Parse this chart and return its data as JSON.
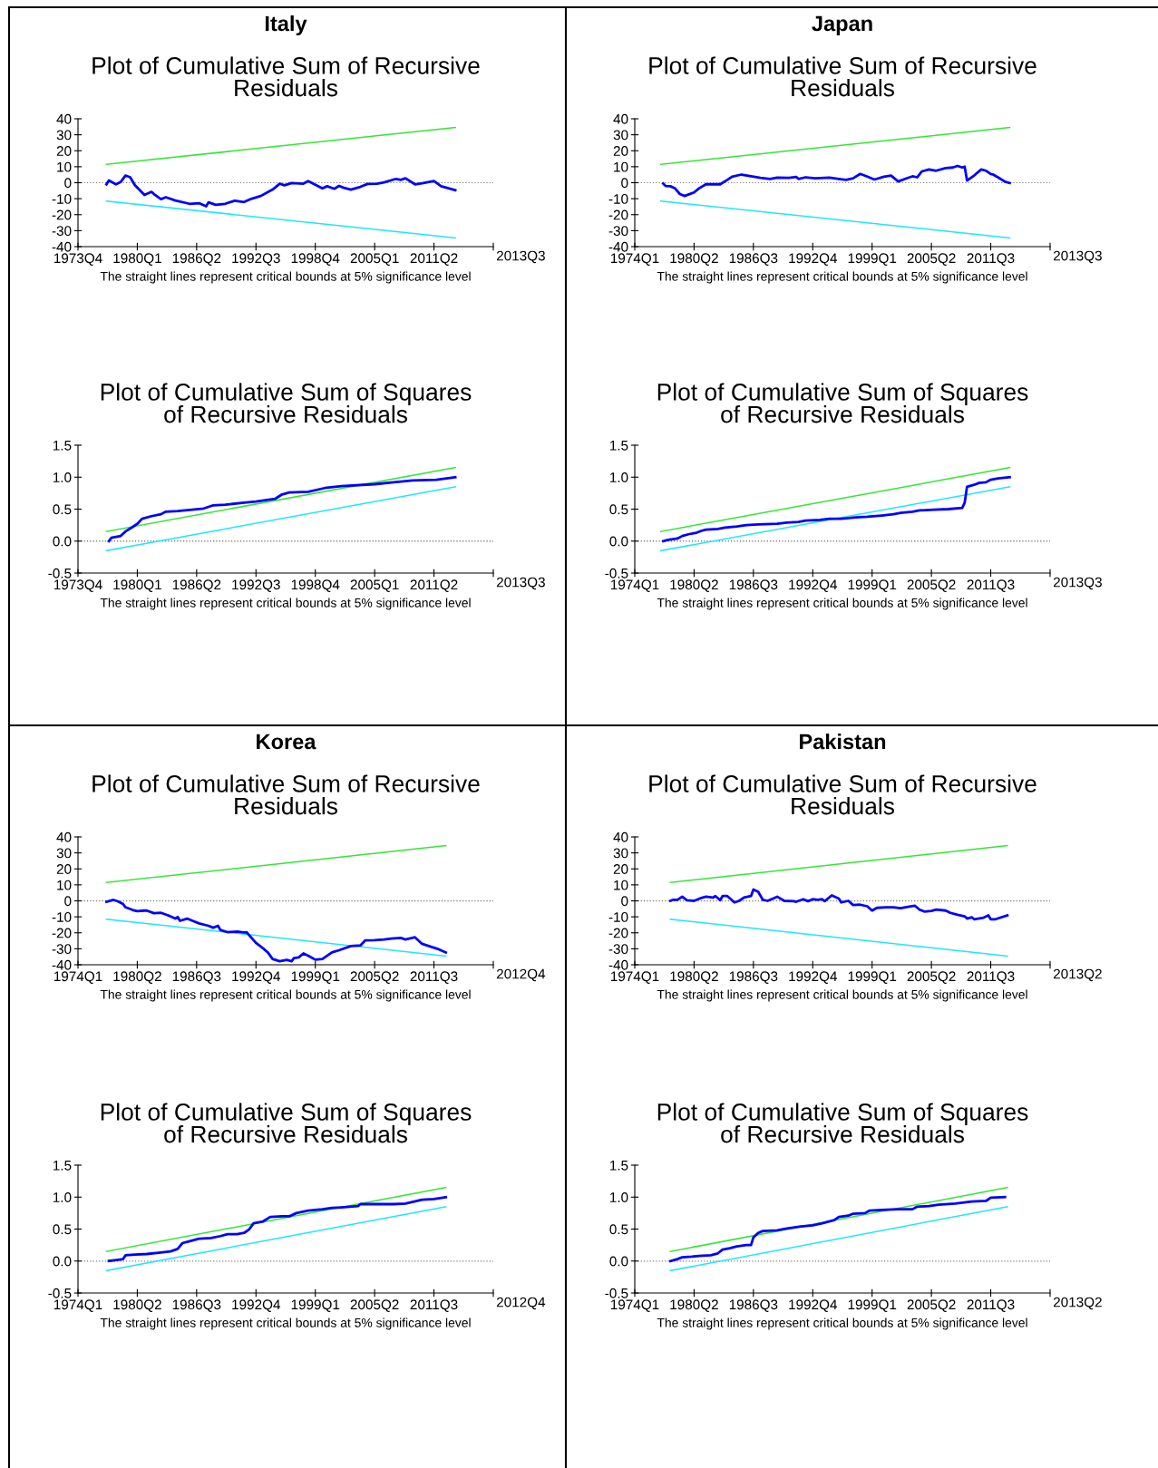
{
  "chart_data": [
    {
      "type": "line",
      "title": "Italy",
      "subtitle": "Plot of Cumulative Sum of Recursive\nResiduals",
      "annotations": [
        "2013Q3",
        "The straight lines represent critical bounds at 5% significance level"
      ],
      "xlim": [
        "1973-10",
        "2017-07"
      ],
      "xticks": [
        {
          "value": "1973-10",
          "label": "1973Q4"
        },
        {
          "value": "1980-01",
          "label": "1980Q1"
        },
        {
          "value": "1986-04",
          "label": "1986Q2"
        },
        {
          "value": "1992-07",
          "label": "1992Q3"
        },
        {
          "value": "1998-10",
          "label": "1998Q4"
        },
        {
          "value": "2005-01",
          "label": "2005Q1"
        },
        {
          "value": "2011-04",
          "label": "2011Q2"
        },
        {
          "value": "2017-07",
          "label": null
        }
      ],
      "ylim": [
        -40,
        40
      ],
      "yticks": [
        {
          "value": -40,
          "label": "-40"
        },
        {
          "value": -30,
          "label": "-30"
        },
        {
          "value": -20,
          "label": "-20"
        },
        {
          "value": -10,
          "label": "-10"
        },
        0,
        10,
        20,
        30,
        40
      ],
      "ref_lines": [
        {
          "axis": "y",
          "value": 0,
          "color": "#808080",
          "line_style": "dotted"
        }
      ],
      "series": [
        {
          "color": "#0000ff",
          "x": [
            "1976-10",
            "1977-01",
            "1977-10",
            "1978-04",
            "1978-10",
            "1979-04",
            "1979-10",
            "1980-10",
            "1981-07",
            "1981-10",
            "1982-07",
            "1983-01",
            "1984-01",
            "1985-07",
            "1986-07",
            "1987-04",
            "1987-07",
            "1988-04",
            "1989-04",
            "1990-04",
            "1991-04",
            "1992-01",
            "1993-01",
            "1994-04",
            "1995-01",
            "1995-07",
            "1996-04",
            "1997-07",
            "1998-01",
            "1999-07",
            "2000-01",
            "2000-10",
            "2001-04",
            "2001-10",
            "2002-07",
            "2003-07",
            "2004-04",
            "2005-04",
            "2006-01",
            "2007-04",
            "2007-10",
            "2008-04",
            "2009-04",
            "2010-01",
            "2011-04",
            "2012-01",
            "2013-07"
          ],
          "values": [
            -1,
            1.4,
            -1,
            0.4,
            4.5,
            3.4,
            -1.6,
            -7.7,
            -5.7,
            -7.1,
            -10.3,
            -9.1,
            -11.1,
            -13.2,
            -12.8,
            -14.8,
            -12.3,
            -13.8,
            -13.2,
            -11.3,
            -12.1,
            -10.1,
            -8.3,
            -4.3,
            -0.6,
            -1.6,
            -0.2,
            -0.6,
            1.0,
            -3.6,
            -2.2,
            -3.8,
            -2.0,
            -3.2,
            -4.3,
            -2.6,
            -0.8,
            -0.6,
            0.2,
            2.4,
            1.8,
            2.8,
            -1.0,
            -0.4,
            1.0,
            -2.2,
            -4.7
          ]
        },
        {
          "color": "#33e633",
          "x": [
            "1976-10",
            "2013-07"
          ],
          "values": [
            11.5,
            34.5
          ]
        },
        {
          "color": "#1ee6ff",
          "x": [
            "1976-10",
            "2013-07"
          ],
          "values": [
            -11.5,
            -34.5
          ]
        }
      ]
    },
    {
      "type": "line",
      "title": "Japan",
      "subtitle": "Plot of Cumulative Sum of Recursive\nResiduals",
      "annotations": [
        "2013Q3",
        "The straight lines represent critical bounds at 5% significance level"
      ],
      "xlim": [
        "1974-01",
        "2017-10"
      ],
      "xticks": [
        {
          "value": "1974-01",
          "label": "1974Q1"
        },
        {
          "value": "1980-04",
          "label": "1980Q2"
        },
        {
          "value": "1986-07",
          "label": "1986Q3"
        },
        {
          "value": "1992-10",
          "label": "1992Q4"
        },
        {
          "value": "1999-01",
          "label": "1999Q1"
        },
        {
          "value": "2005-04",
          "label": "2005Q2"
        },
        {
          "value": "2011-07",
          "label": "2011Q3"
        },
        {
          "value": "2017-10",
          "label": null
        }
      ],
      "ylim": [
        -40,
        40
      ],
      "yticks": [
        {
          "value": -40,
          "label": "-40"
        },
        {
          "value": -30,
          "label": "-30"
        },
        {
          "value": -20,
          "label": "-20"
        },
        {
          "value": -10,
          "label": "-10"
        },
        0,
        10,
        20,
        30,
        40
      ],
      "ref_lines": [
        {
          "axis": "y",
          "value": 0,
          "color": "#808080",
          "line_style": "dotted"
        }
      ],
      "series": [
        {
          "color": "#0000ff",
          "x": [
            "1977-01",
            "1977-04",
            "1977-10",
            "1978-04",
            "1978-10",
            "1979-04",
            "1980-04",
            "1980-10",
            "1981-07",
            "1982-07",
            "1983-01",
            "1983-10",
            "1984-04",
            "1985-04",
            "1986-04",
            "1987-04",
            "1988-04",
            "1989-01",
            "1990-04",
            "1991-01",
            "1991-04",
            "1992-01",
            "1993-01",
            "1994-07",
            "1995-07",
            "1996-04",
            "1997-01",
            "1997-10",
            "1998-07",
            "1999-04",
            "2000-04",
            "2001-01",
            "2001-10",
            "2002-10",
            "2003-04",
            "2003-10",
            "2004-04",
            "2005-01",
            "2005-10",
            "2006-10",
            "2007-07",
            "2008-01",
            "2008-07",
            "2008-10",
            "2009-01",
            "2009-10",
            "2010-07",
            "2011-01",
            "2011-07",
            "2011-10",
            "2012-04",
            "2013-01",
            "2013-07"
          ],
          "values": [
            -0.6,
            -2,
            -2.2,
            -3.6,
            -7.1,
            -8.3,
            -6.1,
            -3.6,
            -1,
            -1,
            -1,
            1.8,
            3.8,
            5.1,
            4,
            3,
            2.4,
            3.2,
            3.0,
            3.6,
            2.4,
            3.4,
            2.8,
            3.2,
            2.4,
            1.8,
            2.8,
            5.5,
            3.8,
            2.0,
            3.8,
            4.5,
            0.8,
            3.0,
            4.0,
            3.4,
            7.1,
            8.3,
            7.5,
            9.1,
            9.5,
            10.5,
            9.5,
            10.1,
            1.4,
            4.5,
            8.3,
            7.5,
            5.5,
            5.1,
            3.4,
            0.6,
            -0.2
          ]
        },
        {
          "color": "#33e633",
          "x": [
            "1976-10",
            "2013-07"
          ],
          "values": [
            11.5,
            34.5
          ]
        },
        {
          "color": "#1ee6ff",
          "x": [
            "1976-10",
            "2013-07"
          ],
          "values": [
            -11.5,
            -34.5
          ]
        }
      ]
    },
    {
      "type": "line",
      "subtitle": "Plot of Cumulative Sum of Squares\nof Recursive Residuals",
      "annotations": [
        "2013Q3",
        "The straight lines represent critical bounds at 5% significance level"
      ],
      "xlim": [
        "1973-10",
        "2017-07"
      ],
      "xticks": [
        {
          "value": "1973-10",
          "label": "1973Q4"
        },
        {
          "value": "1980-01",
          "label": "1980Q1"
        },
        {
          "value": "1986-04",
          "label": "1986Q2"
        },
        {
          "value": "1992-07",
          "label": "1992Q3"
        },
        {
          "value": "1998-10",
          "label": "1998Q4"
        },
        {
          "value": "2005-01",
          "label": "2005Q1"
        },
        {
          "value": "2011-04",
          "label": "2011Q2"
        },
        {
          "value": "2017-07",
          "label": null
        }
      ],
      "ylim": [
        -0.5,
        1.5
      ],
      "yticks": [
        {
          "value": -0.5,
          "label": "-0.5"
        },
        {
          "value": 0,
          "label": "0.0"
        },
        0.5,
        {
          "value": 1,
          "label": "1.0"
        },
        1.5
      ],
      "ref_lines": [
        {
          "axis": "y",
          "value": 0,
          "color": "#808080",
          "line_style": "dotted"
        }
      ],
      "series": [
        {
          "color": "#0000ff",
          "x": [
            "1977-01",
            "1977-04",
            "1978-04",
            "1978-10",
            "1979-07",
            "1980-01",
            "1980-07",
            "1981-07",
            "1982-07",
            "1983-01",
            "1984-04",
            "1985-10",
            "1987-01",
            "1988-01",
            "1989-04",
            "1991-04",
            "1992-07",
            "1994-01",
            "1994-07",
            "1995-04",
            "1996-01",
            "1998-01",
            "1999-10",
            "2001-07",
            "2005-01",
            "2007-01",
            "2009-01",
            "2011-07",
            "2013-07"
          ],
          "values": [
            0,
            0.05,
            0.08,
            0.15,
            0.22,
            0.27,
            0.35,
            0.39,
            0.42,
            0.46,
            0.47,
            0.49,
            0.51,
            0.56,
            0.57,
            0.6,
            0.62,
            0.65,
            0.66,
            0.73,
            0.76,
            0.77,
            0.83,
            0.86,
            0.89,
            0.92,
            0.95,
            0.96,
            1.0
          ]
        },
        {
          "color": "#33e633",
          "x": [
            "1976-10",
            "2013-07"
          ],
          "values": [
            0.15,
            1.15
          ]
        },
        {
          "color": "#1ee6ff",
          "x": [
            "1976-10",
            "2013-07"
          ],
          "values": [
            -0.15,
            0.85
          ]
        }
      ]
    },
    {
      "type": "line",
      "subtitle": "Plot of Cumulative Sum of Squares\nof Recursive Residuals",
      "annotations": [
        "2013Q3",
        "The straight lines represent critical bounds at 5% significance level"
      ],
      "xlim": [
        "1974-01",
        "2017-10"
      ],
      "xticks": [
        {
          "value": "1974-01",
          "label": "1974Q1"
        },
        {
          "value": "1980-04",
          "label": "1980Q2"
        },
        {
          "value": "1986-07",
          "label": "1986Q3"
        },
        {
          "value": "1992-10",
          "label": "1992Q4"
        },
        {
          "value": "1999-01",
          "label": "1999Q1"
        },
        {
          "value": "2005-04",
          "label": "2005Q2"
        },
        {
          "value": "2011-07",
          "label": "2011Q3"
        },
        {
          "value": "2017-10",
          "label": null
        }
      ],
      "ylim": [
        -0.5,
        1.5
      ],
      "yticks": [
        {
          "value": -0.5,
          "label": "-0.5"
        },
        {
          "value": 0,
          "label": "0.0"
        },
        0.5,
        {
          "value": 1,
          "label": "1.0"
        },
        1.5
      ],
      "ref_lines": [
        {
          "axis": "y",
          "value": 0,
          "color": "#808080",
          "line_style": "dotted"
        }
      ],
      "series": [
        {
          "color": "#0000ff",
          "x": [
            "1977-01",
            "1977-07",
            "1978-07",
            "1979-01",
            "1979-10",
            "1980-07",
            "1981-01",
            "1981-07",
            "1982-10",
            "1983-07",
            "1984-10",
            "1985-10",
            "1987-01",
            "1989-01",
            "1990-01",
            "1991-04",
            "1992-01",
            "1993-07",
            "1994-07",
            "1995-10",
            "1997-04",
            "1998-07",
            "2000-01",
            "2001-04",
            "2002-01",
            "2003-04",
            "2004-01",
            "2005-07",
            "2007-01",
            "2008-07",
            "2008-10",
            "2009-01",
            "2009-10",
            "2010-04",
            "2011-01",
            "2011-07",
            "2012-04",
            "2013-07"
          ],
          "values": [
            0,
            0.02,
            0.04,
            0.08,
            0.11,
            0.13,
            0.16,
            0.18,
            0.19,
            0.21,
            0.23,
            0.25,
            0.26,
            0.27,
            0.29,
            0.3,
            0.32,
            0.33,
            0.35,
            0.35,
            0.37,
            0.38,
            0.4,
            0.42,
            0.44,
            0.46,
            0.48,
            0.49,
            0.5,
            0.52,
            0.6,
            0.85,
            0.88,
            0.91,
            0.92,
            0.96,
            0.98,
            1.0
          ]
        },
        {
          "color": "#33e633",
          "x": [
            "1976-10",
            "2013-07"
          ],
          "values": [
            0.15,
            1.15
          ]
        },
        {
          "color": "#1ee6ff",
          "x": [
            "1976-10",
            "2013-07"
          ],
          "values": [
            -0.15,
            0.85
          ]
        }
      ]
    },
    {
      "type": "line",
      "title": "Korea",
      "subtitle": "Plot of Cumulative Sum of Recursive\nResiduals",
      "annotations": [
        "2012Q4",
        "The straight lines represent critical bounds at 5% significance level"
      ],
      "xlim": [
        "1974-01",
        "2017-10"
      ],
      "xticks": [
        {
          "value": "1974-01",
          "label": "1974Q1"
        },
        {
          "value": "1980-04",
          "label": "1980Q2"
        },
        {
          "value": "1986-07",
          "label": "1986Q3"
        },
        {
          "value": "1992-10",
          "label": "1992Q4"
        },
        {
          "value": "1999-01",
          "label": "1999Q1"
        },
        {
          "value": "2005-04",
          "label": "2005Q2"
        },
        {
          "value": "2011-07",
          "label": "2011Q3"
        },
        {
          "value": "2017-10",
          "label": null
        }
      ],
      "ylim": [
        -40,
        40
      ],
      "yticks": [
        {
          "value": -40,
          "label": "-40"
        },
        {
          "value": -30,
          "label": "-30"
        },
        {
          "value": -20,
          "label": "-20"
        },
        {
          "value": -10,
          "label": "-10"
        },
        0,
        10,
        20,
        30,
        40
      ],
      "ref_lines": [
        {
          "axis": "y",
          "value": 0,
          "color": "#808080",
          "line_style": "dotted"
        }
      ],
      "series": [
        {
          "color": "#0000ff",
          "x": [
            "1977-01",
            "1977-10",
            "1978-04",
            "1978-10",
            "1979-01",
            "1979-10",
            "1980-04",
            "1981-01",
            "1981-04",
            "1982-01",
            "1982-10",
            "1983-07",
            "1984-04",
            "1984-07",
            "1984-10",
            "1985-07",
            "1986-01",
            "1986-10",
            "1987-10",
            "1988-04",
            "1988-10",
            "1989-01",
            "1989-10",
            "1990-10",
            "1991-07",
            "1991-10",
            "1992-10",
            "1993-07",
            "1994-01",
            "1994-07",
            "1995-04",
            "1996-01",
            "1996-07",
            "1996-10",
            "1997-04",
            "1997-10",
            "1998-04",
            "1999-01",
            "1999-10",
            "2000-10",
            "2001-07",
            "2002-10",
            "2003-10",
            "2004-04",
            "2005-04",
            "2006-04",
            "2007-01",
            "2008-01",
            "2008-07",
            "2009-07",
            "2010-04",
            "2011-04",
            "2012-01",
            "2012-10"
          ],
          "values": [
            -0.6,
            0.6,
            -0.4,
            -2,
            -4,
            -5.7,
            -6.5,
            -6.1,
            -6.1,
            -7.7,
            -7.5,
            -9.1,
            -11.1,
            -10.1,
            -12.5,
            -11.1,
            -12.3,
            -14.1,
            -15.6,
            -16.8,
            -15.6,
            -18.2,
            -19.6,
            -19.2,
            -19.8,
            -19.6,
            -26.3,
            -29.7,
            -32.3,
            -36.4,
            -37.8,
            -37,
            -37.8,
            -35.8,
            -35.4,
            -32.9,
            -34.3,
            -36.8,
            -36.4,
            -32.3,
            -30.9,
            -28.3,
            -27.9,
            -24.8,
            -24.6,
            -24.2,
            -23.6,
            -23.2,
            -24.2,
            -22.8,
            -26.9,
            -28.9,
            -30.3,
            -32.3
          ]
        },
        {
          "color": "#33e633",
          "x": [
            "1977-01",
            "2012-10"
          ],
          "values": [
            11.5,
            34.5
          ]
        },
        {
          "color": "#1ee6ff",
          "x": [
            "1977-01",
            "2012-10"
          ],
          "values": [
            -11.5,
            -34.5
          ]
        }
      ]
    },
    {
      "type": "line",
      "title": "Pakistan",
      "subtitle": "Plot of Cumulative Sum of Recursive\nResiduals",
      "annotations": [
        "2013Q2",
        "The straight lines represent critical bounds at 5% significance level"
      ],
      "xlim": [
        "1974-01",
        "2017-10"
      ],
      "xticks": [
        {
          "value": "1974-01",
          "label": "1974Q1"
        },
        {
          "value": "1980-04",
          "label": "1980Q2"
        },
        {
          "value": "1986-07",
          "label": "1986Q3"
        },
        {
          "value": "1992-10",
          "label": "1992Q4"
        },
        {
          "value": "1999-01",
          "label": "1999Q1"
        },
        {
          "value": "2005-04",
          "label": "2005Q2"
        },
        {
          "value": "2011-07",
          "label": "2011Q3"
        },
        {
          "value": "2017-10",
          "label": null
        }
      ],
      "ylim": [
        -40,
        40
      ],
      "yticks": [
        {
          "value": -40,
          "label": "-40"
        },
        {
          "value": -30,
          "label": "-30"
        },
        {
          "value": -20,
          "label": "-20"
        },
        {
          "value": -10,
          "label": "-10"
        },
        0,
        10,
        20,
        30,
        40
      ],
      "ref_lines": [
        {
          "axis": "y",
          "value": 0,
          "color": "#808080",
          "line_style": "dotted"
        }
      ],
      "series": [
        {
          "color": "#0000ff",
          "x": [
            "1977-10",
            "1978-01",
            "1978-07",
            "1979-01",
            "1979-07",
            "1980-04",
            "1981-01",
            "1981-07",
            "1982-04",
            "1982-07",
            "1983-01",
            "1983-04",
            "1983-10",
            "1984-07",
            "1985-01",
            "1985-07",
            "1986-04",
            "1986-07",
            "1987-01",
            "1987-07",
            "1988-01",
            "1989-01",
            "1989-10",
            "1990-10",
            "1991-01",
            "1991-10",
            "1992-04",
            "1992-10",
            "1993-04",
            "1993-10",
            "1994-01",
            "1994-10",
            "1995-07",
            "1995-10",
            "1996-07",
            "1997-01",
            "1997-10",
            "1998-07",
            "1999-01",
            "1999-07",
            "2000-07",
            "2001-04",
            "2002-01",
            "2002-07",
            "2003-07",
            "2004-01",
            "2004-07",
            "2005-04",
            "2005-10",
            "2006-10",
            "2007-04",
            "2008-01",
            "2008-10",
            "2009-01",
            "2009-07",
            "2009-10",
            "2010-10",
            "2011-04",
            "2011-07",
            "2012-01",
            "2013-04"
          ],
          "values": [
            0,
            0.6,
            0.6,
            2.6,
            0.4,
            0,
            1.8,
            2.6,
            2,
            3,
            0.4,
            3,
            3,
            -1,
            0,
            2,
            3,
            7.1,
            5.7,
            0.6,
            0,
            2.6,
            0,
            -0.2,
            -0.6,
            1.0,
            -0.2,
            1,
            0.6,
            1,
            -0.2,
            3.4,
            1.4,
            -1,
            0,
            -2.6,
            -2.4,
            -3.4,
            -6.1,
            -4.4,
            -4,
            -4,
            -4.6,
            -4,
            -3,
            -5.5,
            -6.7,
            -6.3,
            -5.5,
            -6.1,
            -7.5,
            -8.7,
            -9.7,
            -11.1,
            -10.3,
            -11.5,
            -10.5,
            -9.1,
            -11.5,
            -11.5,
            -9.1
          ]
        },
        {
          "color": "#33e633",
          "x": [
            "1977-10",
            "2013-04"
          ],
          "values": [
            11.5,
            34.5
          ]
        },
        {
          "color": "#1ee6ff",
          "x": [
            "1977-10",
            "2013-04"
          ],
          "values": [
            -11.5,
            -34.5
          ]
        }
      ]
    },
    {
      "type": "line",
      "subtitle": "Plot of Cumulative Sum of Squares\nof Recursive Residuals",
      "annotations": [
        "2012Q4",
        "The straight lines represent critical bounds at 5% significance level"
      ],
      "xlim": [
        "1974-01",
        "2017-10"
      ],
      "xticks": [
        {
          "value": "1974-01",
          "label": "1974Q1"
        },
        {
          "value": "1980-04",
          "label": "1980Q2"
        },
        {
          "value": "1986-07",
          "label": "1986Q3"
        },
        {
          "value": "1992-10",
          "label": "1992Q4"
        },
        {
          "value": "1999-01",
          "label": "1999Q1"
        },
        {
          "value": "2005-04",
          "label": "2005Q2"
        },
        {
          "value": "2011-07",
          "label": "2011Q3"
        },
        {
          "value": "2017-10",
          "label": null
        }
      ],
      "ylim": [
        -0.5,
        1.5
      ],
      "yticks": [
        {
          "value": -0.5,
          "label": "-0.5"
        },
        {
          "value": 0,
          "label": "0.0"
        },
        0.5,
        {
          "value": 1,
          "label": "1.0"
        },
        1.5
      ],
      "ref_lines": [
        {
          "axis": "y",
          "value": 0,
          "color": "#808080",
          "line_style": "dotted"
        }
      ],
      "series": [
        {
          "color": "#0000ff",
          "x": [
            "1977-04",
            "1978-04",
            "1978-10",
            "1979-01",
            "1980-01",
            "1981-04",
            "1982-07",
            "1983-10",
            "1984-07",
            "1985-01",
            "1985-07",
            "1986-10",
            "1988-01",
            "1989-01",
            "1989-10",
            "1990-10",
            "1991-07",
            "1992-01",
            "1992-07",
            "1993-07",
            "1994-04",
            "1995-07",
            "1996-04",
            "1997-01",
            "1998-04",
            "1999-10",
            "2000-10",
            "2001-10",
            "2003-07",
            "2003-10",
            "2005-01",
            "2007-04",
            "2008-07",
            "2010-04",
            "2011-07",
            "2012-10"
          ],
          "values": [
            0,
            0.02,
            0.03,
            0.09,
            0.1,
            0.11,
            0.13,
            0.15,
            0.19,
            0.28,
            0.3,
            0.35,
            0.36,
            0.39,
            0.42,
            0.42,
            0.44,
            0.49,
            0.59,
            0.62,
            0.69,
            0.7,
            0.7,
            0.75,
            0.79,
            0.81,
            0.83,
            0.84,
            0.86,
            0.89,
            0.89,
            0.89,
            0.9,
            0.96,
            0.97,
            1.0
          ]
        },
        {
          "color": "#33e633",
          "x": [
            "1977-01",
            "2012-10"
          ],
          "values": [
            0.15,
            1.15
          ]
        },
        {
          "color": "#1ee6ff",
          "x": [
            "1977-01",
            "2012-10"
          ],
          "values": [
            -0.15,
            0.85
          ]
        }
      ]
    },
    {
      "type": "line",
      "subtitle": "Plot of Cumulative Sum of Squares\nof Recursive Residuals",
      "annotations": [
        "2013Q2",
        "The straight lines represent critical bounds at 5% significance level"
      ],
      "xlim": [
        "1974-01",
        "2017-10"
      ],
      "xticks": [
        {
          "value": "1974-01",
          "label": "1974Q1"
        },
        {
          "value": "1980-04",
          "label": "1980Q2"
        },
        {
          "value": "1986-07",
          "label": "1986Q3"
        },
        {
          "value": "1992-10",
          "label": "1992Q4"
        },
        {
          "value": "1999-01",
          "label": "1999Q1"
        },
        {
          "value": "2005-04",
          "label": "2005Q2"
        },
        {
          "value": "2011-07",
          "label": "2011Q3"
        },
        {
          "value": "2017-10",
          "label": null
        }
      ],
      "ylim": [
        -0.5,
        1.5
      ],
      "yticks": [
        {
          "value": -0.5,
          "label": "-0.5"
        },
        {
          "value": 0,
          "label": "0.0"
        },
        0.5,
        {
          "value": 1,
          "label": "1.0"
        },
        1.5
      ],
      "ref_lines": [
        {
          "axis": "y",
          "value": 0,
          "color": "#808080",
          "line_style": "dotted"
        }
      ],
      "series": [
        {
          "color": "#0000ff",
          "x": [
            "1977-10",
            "1978-07",
            "1979-01",
            "1980-01",
            "1980-10",
            "1982-01",
            "1982-10",
            "1983-04",
            "1984-01",
            "1984-10",
            "1985-10",
            "1986-04",
            "1986-07",
            "1987-01",
            "1987-07",
            "1989-01",
            "1990-01",
            "1991-07",
            "1992-10",
            "1993-10",
            "1995-01",
            "1995-07",
            "1996-07",
            "1997-01",
            "1998-04",
            "1998-10",
            "2000-01",
            "2001-10",
            "2003-04",
            "2003-10",
            "2005-01",
            "2006-01",
            "2007-10",
            "2009-07",
            "2011-01",
            "2011-07",
            "2013-01"
          ],
          "values": [
            0,
            0.03,
            0.06,
            0.07,
            0.08,
            0.09,
            0.12,
            0.18,
            0.2,
            0.23,
            0.25,
            0.25,
            0.37,
            0.44,
            0.47,
            0.48,
            0.51,
            0.54,
            0.56,
            0.59,
            0.64,
            0.69,
            0.71,
            0.74,
            0.75,
            0.79,
            0.8,
            0.81,
            0.81,
            0.85,
            0.86,
            0.88,
            0.9,
            0.93,
            0.94,
            0.99,
            1.0
          ]
        },
        {
          "color": "#33e633",
          "x": [
            "1977-10",
            "2013-04"
          ],
          "values": [
            0.15,
            1.15
          ]
        },
        {
          "color": "#1ee6ff",
          "x": [
            "1977-10",
            "2013-04"
          ],
          "values": [
            -0.15,
            0.85
          ]
        }
      ]
    }
  ]
}
